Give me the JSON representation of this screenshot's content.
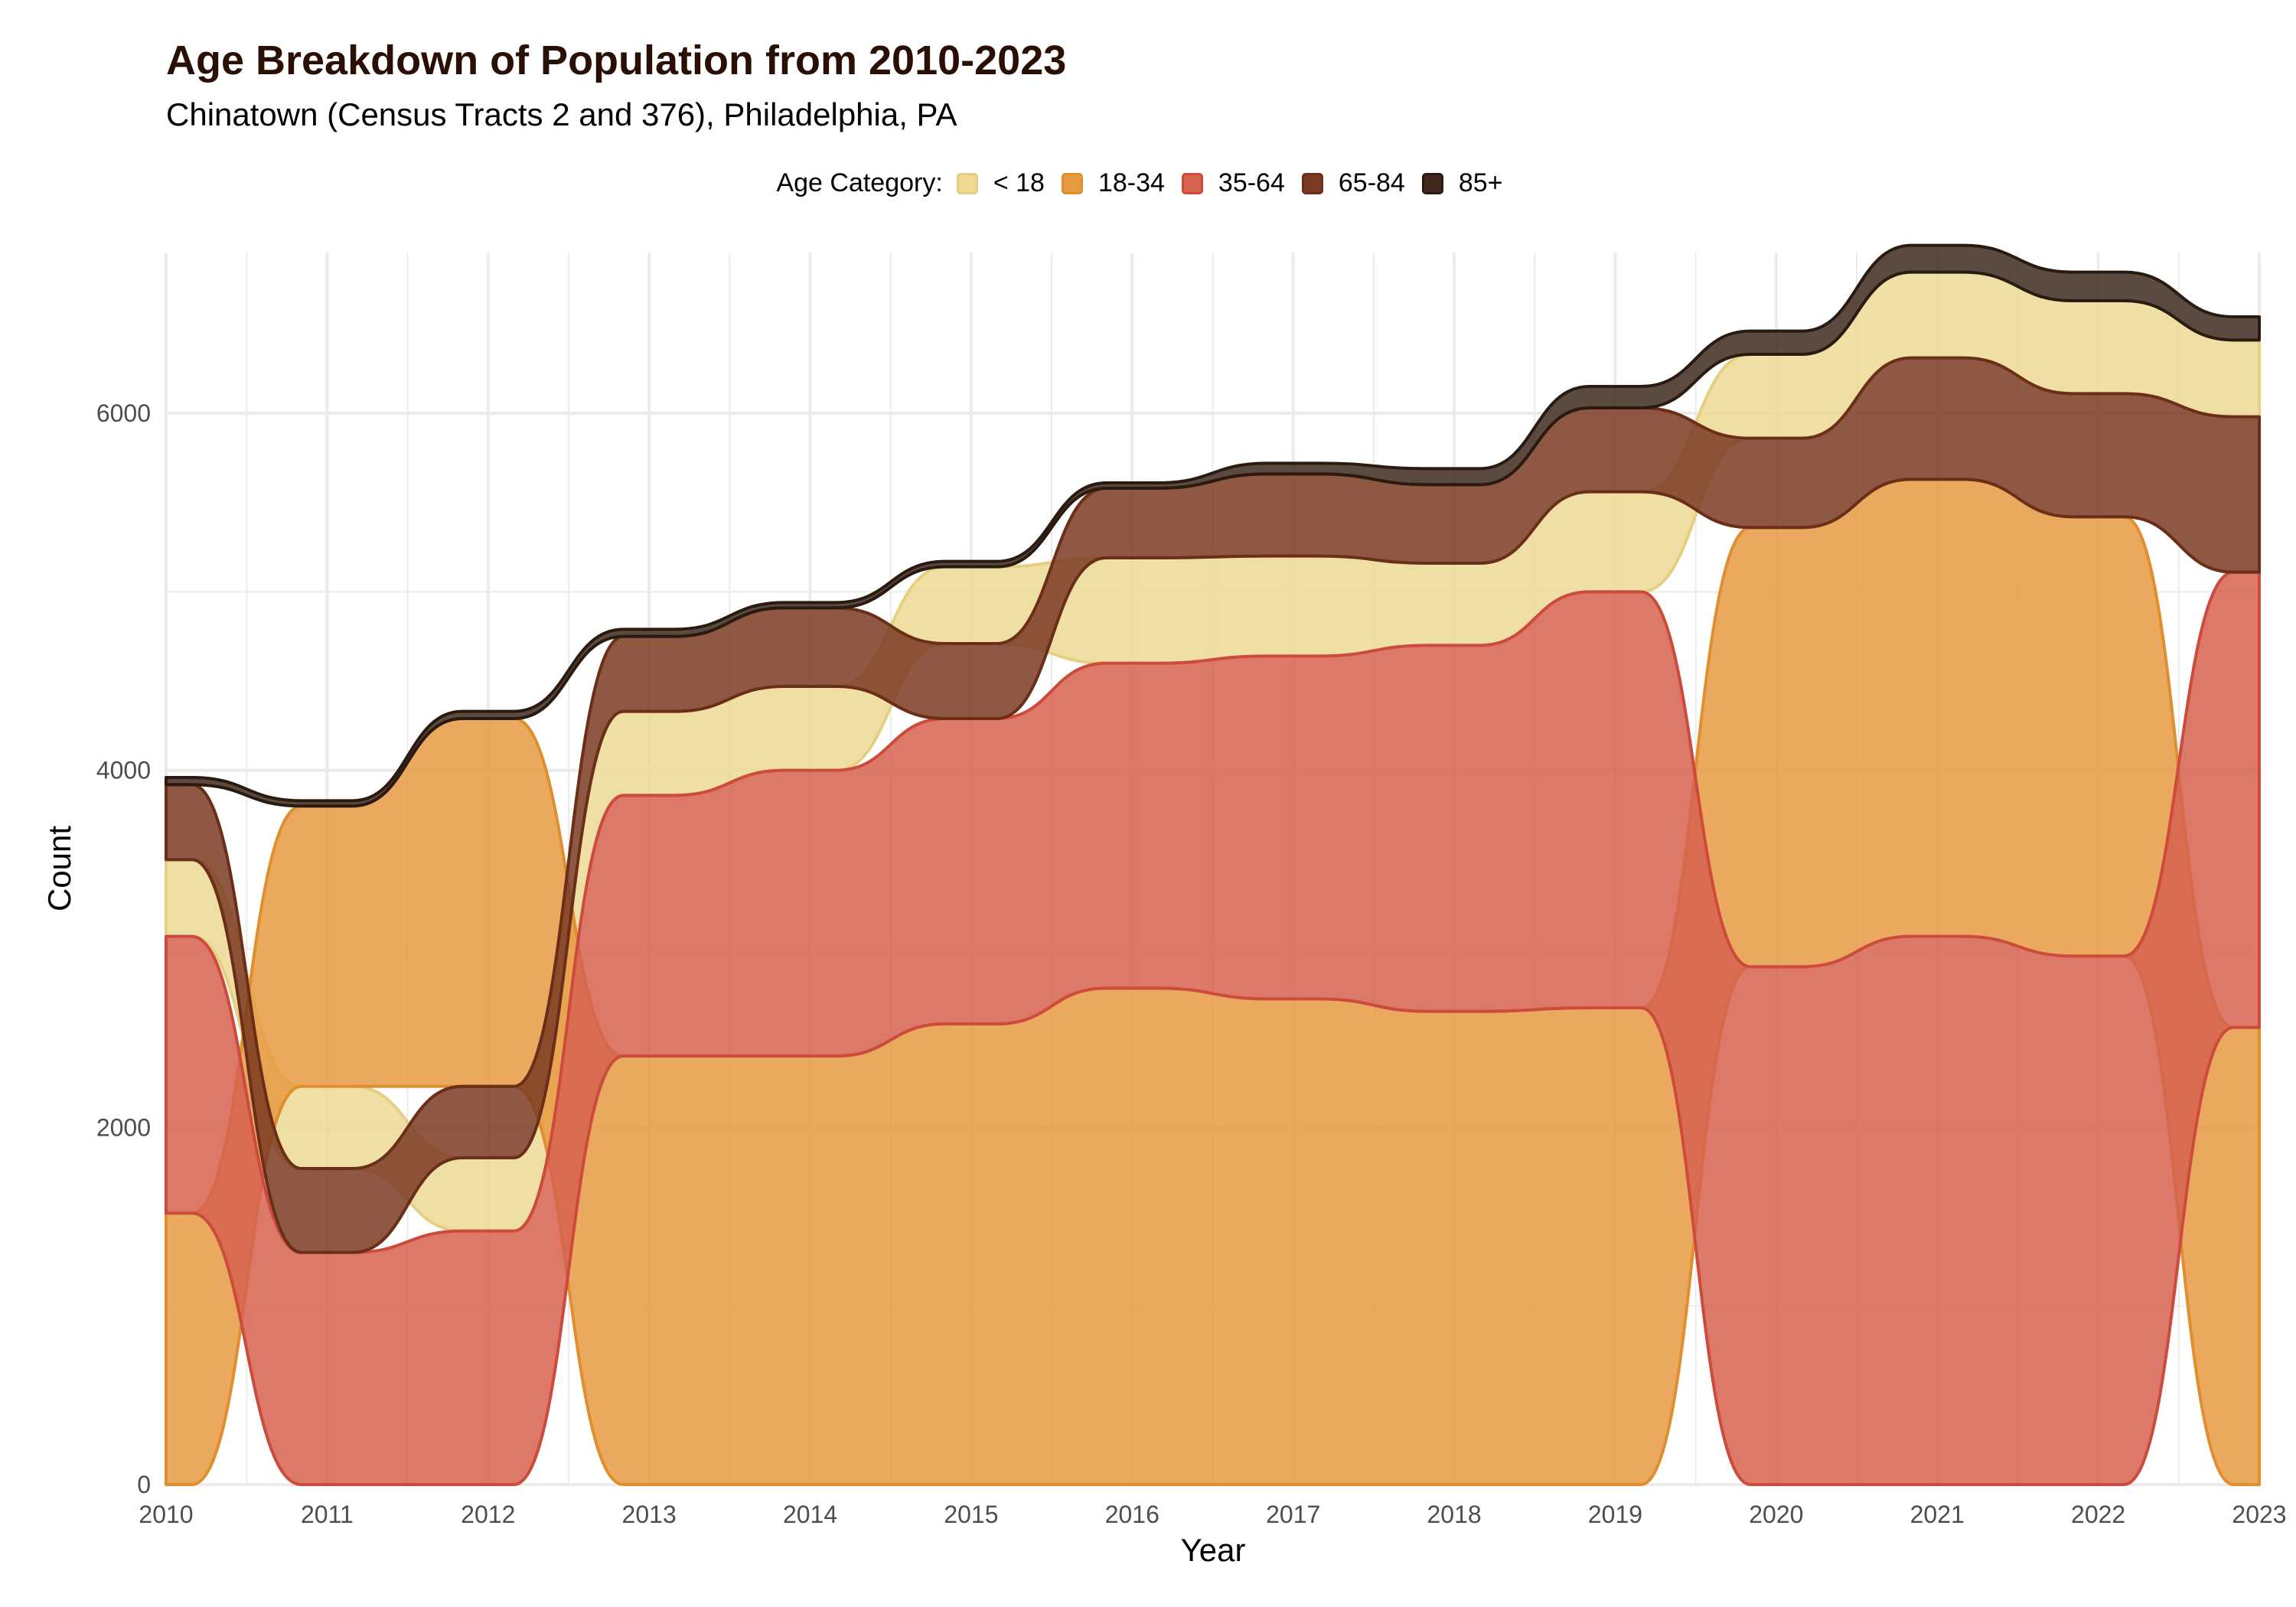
{
  "chart_data": {
    "type": "area",
    "title": "Age Breakdown of Population from 2010-2023",
    "subtitle": "Chinatown (Census Tracts 2 and 376), Philadelphia, PA",
    "xlabel": "Year",
    "ylabel": "Count",
    "legend_title": "Age Category:",
    "legend_position": "top",
    "grid": true,
    "xlim": [
      2010,
      2023
    ],
    "ylim": [
      0,
      6900
    ],
    "x_ticks": [
      "2010",
      "2011",
      "2012",
      "2013",
      "2014",
      "2015",
      "2016",
      "2017",
      "2018",
      "2019",
      "2020",
      "2021",
      "2022",
      "2023"
    ],
    "y_ticks": [
      "0",
      "2000",
      "4000",
      "6000"
    ],
    "x": [
      2010,
      2011,
      2012,
      2013,
      2014,
      2015,
      2016,
      2017,
      2018,
      2019,
      2020,
      2021,
      2022,
      2023
    ],
    "series": [
      {
        "name": "< 18",
        "color": "#ecd995",
        "stroke": "#e6cf80",
        "values": [
          430,
          460,
          410,
          470,
          470,
          430,
          590,
          560,
          460,
          560,
          470,
          480,
          520,
          430
        ]
      },
      {
        "name": "18-34",
        "color": "#e69a42",
        "stroke": "#e08f2f",
        "values": [
          1520,
          1570,
          2060,
          2400,
          2400,
          2580,
          2780,
          2720,
          2650,
          2670,
          2460,
          2560,
          2460,
          2560
        ]
      },
      {
        "name": "35-64",
        "color": "#d6624f",
        "stroke": "#cc4b3d",
        "values": [
          1550,
          1300,
          1420,
          1460,
          1600,
          1710,
          1820,
          1920,
          2050,
          2330,
          2900,
          3070,
          2960,
          2550
        ]
      },
      {
        "name": "65-84",
        "color": "#7b3b22",
        "stroke": "#6b2e18",
        "values": [
          420,
          470,
          400,
          420,
          440,
          420,
          390,
          460,
          440,
          470,
          500,
          680,
          690,
          870
        ]
      },
      {
        "name": "85+",
        "color": "#3e2a1e",
        "stroke": "#2a1a10",
        "values": [
          40,
          30,
          40,
          40,
          30,
          30,
          30,
          60,
          90,
          120,
          130,
          150,
          160,
          130
        ]
      }
    ],
    "order_by_year": [
      [
        1,
        2,
        0,
        3,
        4
      ],
      [
        2,
        3,
        0,
        1,
        4
      ],
      [
        2,
        0,
        3,
        1,
        4
      ],
      [
        1,
        2,
        0,
        3,
        4
      ],
      [
        1,
        2,
        0,
        3,
        4
      ],
      [
        1,
        2,
        3,
        0,
        4
      ],
      [
        1,
        2,
        0,
        3,
        4
      ],
      [
        1,
        2,
        0,
        3,
        4
      ],
      [
        1,
        2,
        0,
        3,
        4
      ],
      [
        1,
        2,
        0,
        3,
        4
      ],
      [
        2,
        1,
        3,
        0,
        4
      ],
      [
        2,
        1,
        3,
        0,
        4
      ],
      [
        2,
        1,
        3,
        0,
        4
      ],
      [
        1,
        2,
        3,
        0,
        4
      ]
    ]
  }
}
